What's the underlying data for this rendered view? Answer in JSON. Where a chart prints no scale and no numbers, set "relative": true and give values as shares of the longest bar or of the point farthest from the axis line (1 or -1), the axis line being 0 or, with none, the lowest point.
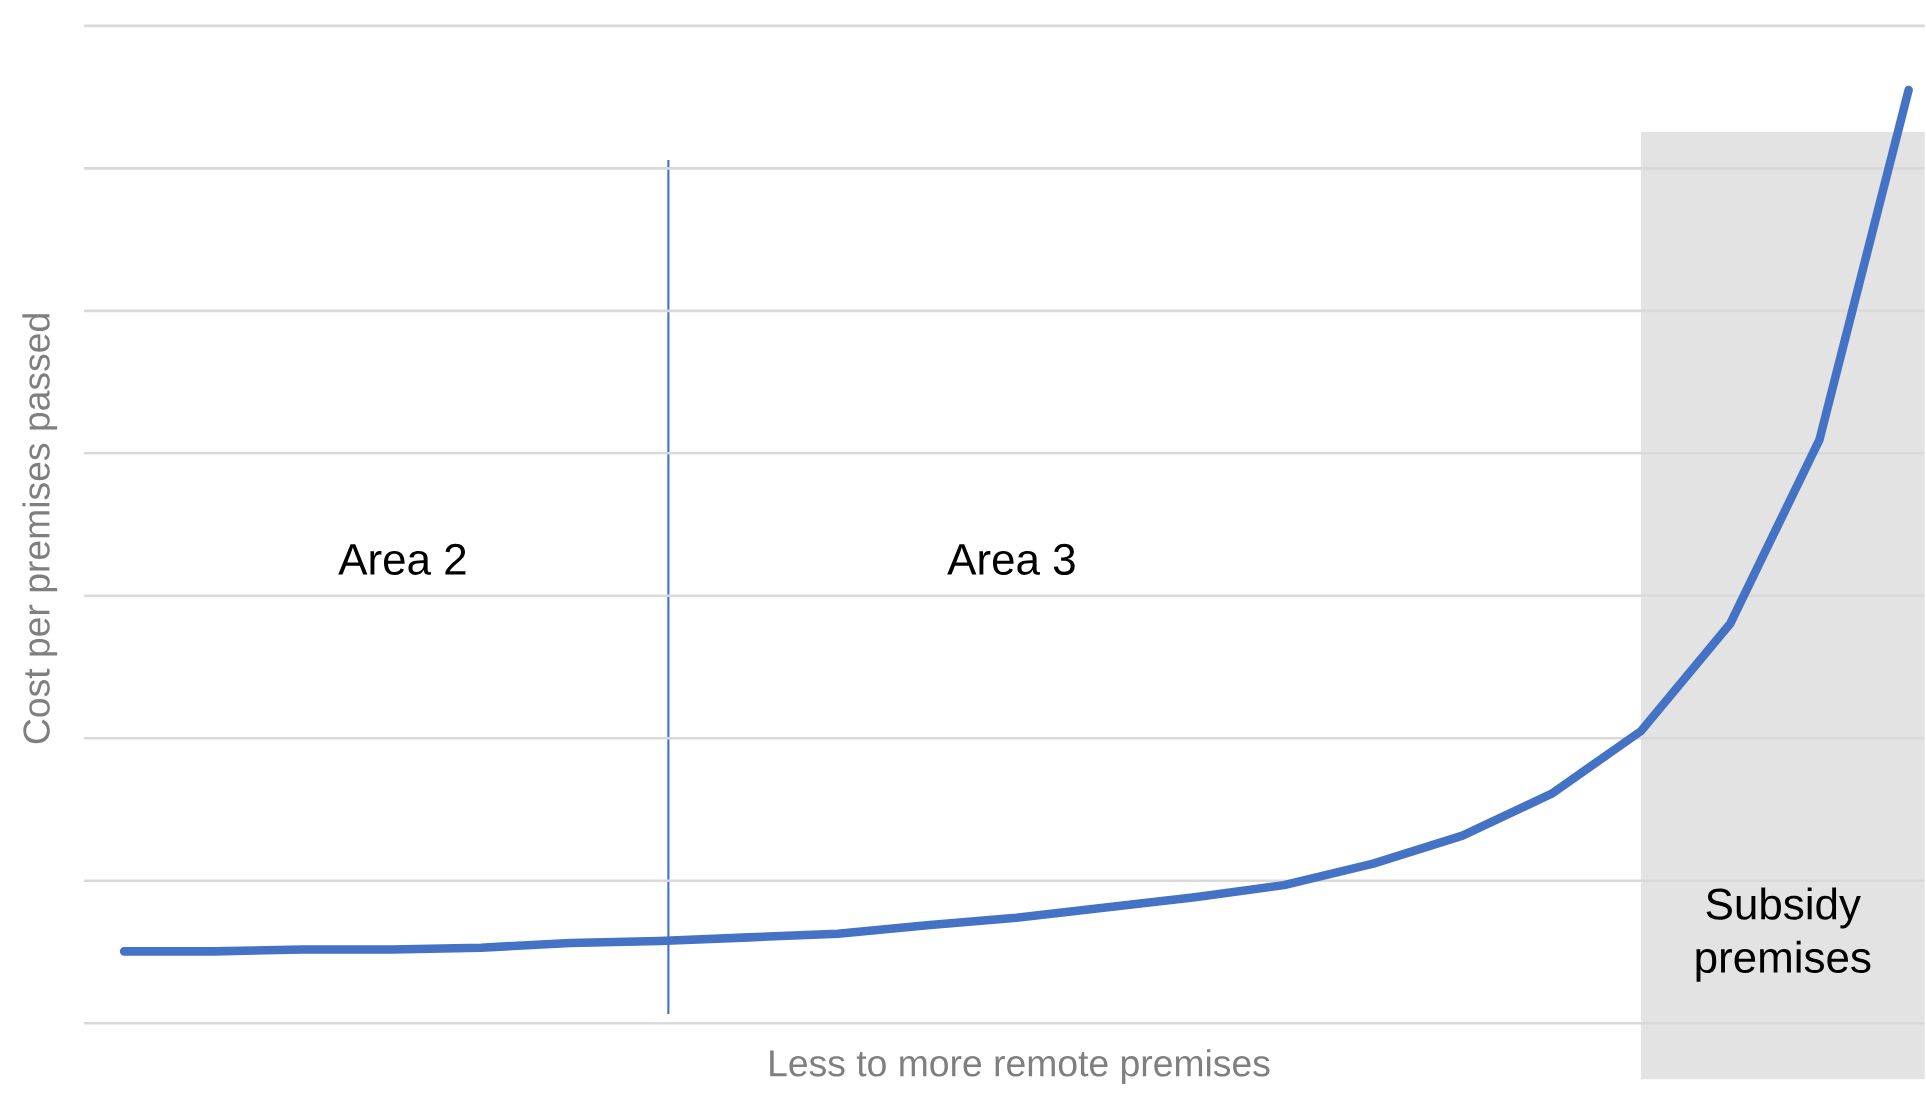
{
  "chart_data": {
    "type": "line",
    "relative": true,
    "xlabel": "Less to more remote premises",
    "ylabel": "Cost per premises passed",
    "categories": [
      null,
      null,
      null,
      null,
      null,
      null,
      null,
      null,
      null,
      null,
      null,
      null,
      null,
      null,
      null,
      null,
      null,
      null,
      null,
      null,
      null
    ],
    "values": [
      0.077,
      0.077,
      0.079,
      0.079,
      0.081,
      0.086,
      0.088,
      0.092,
      0.096,
      0.105,
      0.113,
      0.124,
      0.135,
      0.148,
      0.171,
      0.201,
      0.246,
      0.313,
      0.428,
      0.625,
      1
    ],
    "color": "#4472c4",
    "grid": "y",
    "annotations": [
      "Area 2",
      "Area 3",
      "Subsidy premises"
    ]
  }
}
